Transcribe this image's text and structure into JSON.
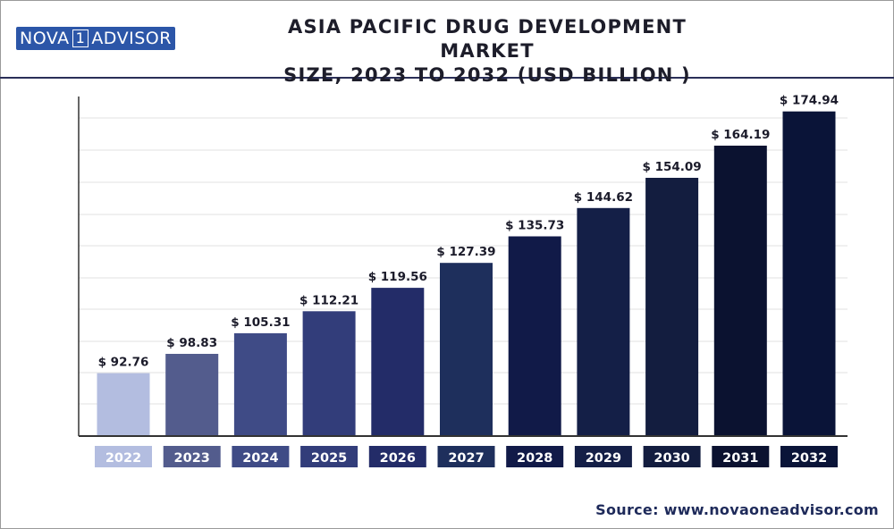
{
  "header": {
    "logo": {
      "part1": "NOVA",
      "part2": "1",
      "part3": "ADVISOR"
    },
    "title": "ASIA PACIFIC DRUG DEVELOPMENT MARKET\nSIZE, 2023 TO 2032 (USD BILLION )"
  },
  "source": "Source: www.novaoneadvisor.com",
  "chart_data": {
    "type": "bar",
    "title": "ASIA PACIFIC DRUG DEVELOPMENT MARKET SIZE, 2023 TO 2032 (USD BILLION )",
    "categories": [
      "2022",
      "2023",
      "2024",
      "2025",
      "2026",
      "2027",
      "2028",
      "2029",
      "2030",
      "2031",
      "2032"
    ],
    "values": [
      92.76,
      98.83,
      105.31,
      112.21,
      119.56,
      127.39,
      135.73,
      144.62,
      154.09,
      164.19,
      174.94
    ],
    "data_labels": [
      "$ 92.76",
      "$ 98.83",
      "$ 105.31",
      "$ 112.21",
      "$ 119.56",
      "$ 127.39",
      "$ 135.73",
      "$ 144.62",
      "$ 154.09",
      "$ 164.19",
      "$ 174.94"
    ],
    "colors": [
      "#b3bde0",
      "#535c8d",
      "#3f4b86",
      "#323d7a",
      "#232c68",
      "#1e2f5c",
      "#111a48",
      "#141f47",
      "#131d3f",
      "#0b1230",
      "#0a1438"
    ],
    "ylim": [
      73,
      183
    ],
    "grid": true,
    "xlabel": "",
    "ylabel": ""
  }
}
